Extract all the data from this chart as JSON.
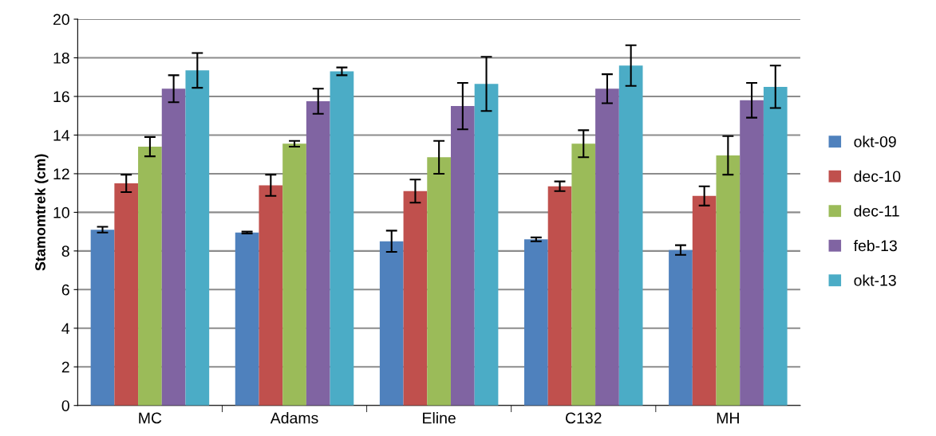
{
  "chart_data": {
    "type": "bar",
    "ylabel": "Stamomtrek (cm)",
    "categories": [
      "MC",
      "Adams",
      "Eline",
      "C132",
      "MH"
    ],
    "series": [
      {
        "name": "okt-09",
        "color": "#4f81bd",
        "values": [
          9.1,
          8.95,
          8.5,
          8.6,
          8.05
        ],
        "errors": [
          0.15,
          0.05,
          0.55,
          0.1,
          0.25
        ]
      },
      {
        "name": "dec-10",
        "color": "#c0504d",
        "values": [
          11.5,
          11.4,
          11.1,
          11.35,
          10.85
        ],
        "errors": [
          0.45,
          0.55,
          0.6,
          0.25,
          0.5
        ]
      },
      {
        "name": "dec-11",
        "color": "#9bbb59",
        "values": [
          13.4,
          13.55,
          12.85,
          13.55,
          12.95
        ],
        "errors": [
          0.5,
          0.15,
          0.85,
          0.7,
          1.0
        ]
      },
      {
        "name": "feb-13",
        "color": "#8064a2",
        "values": [
          16.4,
          15.75,
          15.5,
          16.4,
          15.8
        ],
        "errors": [
          0.7,
          0.65,
          1.2,
          0.75,
          0.9
        ]
      },
      {
        "name": "okt-13",
        "color": "#4bacc6",
        "values": [
          17.35,
          17.3,
          16.65,
          17.6,
          16.5
        ],
        "errors": [
          0.9,
          0.2,
          1.4,
          1.05,
          1.1
        ]
      }
    ],
    "ylim": [
      0,
      20
    ],
    "yticks": [
      0,
      2,
      4,
      6,
      8,
      10,
      12,
      14,
      16,
      18,
      20
    ],
    "grid": "y",
    "legend": "right"
  }
}
